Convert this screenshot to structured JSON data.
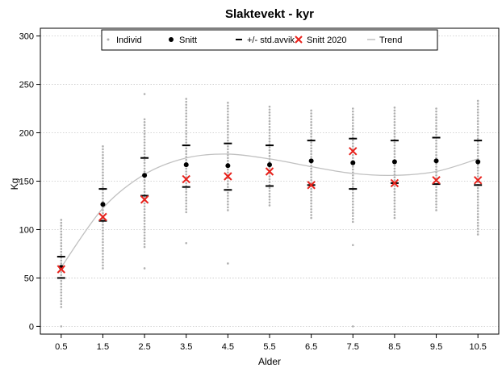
{
  "chart_data": {
    "type": "scatter",
    "title": "Slaktevekt - kyr",
    "xlabel": "Alder",
    "ylabel": "Kg",
    "x_ticks": [
      "0.5",
      "1.5",
      "2.5",
      "3.5",
      "4.5",
      "5.5",
      "6.5",
      "7.5",
      "8.5",
      "9.5",
      "10.5"
    ],
    "y_ticks": [
      "0",
      "50",
      "100",
      "150",
      "200",
      "250",
      "300"
    ],
    "xlim": [
      0,
      11
    ],
    "ylim": [
      -8,
      308
    ],
    "grid": "horizontal dotted",
    "legend_placement": "top",
    "legend": [
      {
        "label": "Individ",
        "marker": "small-dot",
        "color": "#b0b0b0"
      },
      {
        "label": "Snitt",
        "marker": "dot",
        "color": "#000000"
      },
      {
        "label": "+/- std.avvik",
        "marker": "dash",
        "color": "#000000"
      },
      {
        "label": "Snitt 2020",
        "marker": "x",
        "color": "#e8221c"
      },
      {
        "label": "Trend",
        "marker": "line",
        "color": "#c0c0c0"
      }
    ],
    "series": [
      {
        "name": "Individ",
        "ranges": [
          {
            "x": 0.5,
            "min": 20,
            "max": 110,
            "outliers": [
              0
            ]
          },
          {
            "x": 1.5,
            "min": 60,
            "max": 188,
            "outliers": []
          },
          {
            "x": 2.5,
            "min": 82,
            "max": 215,
            "outliers": [
              60,
              240
            ]
          },
          {
            "x": 3.5,
            "min": 118,
            "max": 235,
            "outliers": [
              86
            ]
          },
          {
            "x": 4.5,
            "min": 120,
            "max": 233,
            "outliers": [
              65
            ]
          },
          {
            "x": 5.5,
            "min": 125,
            "max": 228,
            "outliers": []
          },
          {
            "x": 6.5,
            "min": 112,
            "max": 225,
            "outliers": []
          },
          {
            "x": 7.5,
            "min": 108,
            "max": 226,
            "outliers": [
              84,
              0
            ]
          },
          {
            "x": 8.5,
            "min": 112,
            "max": 226,
            "outliers": []
          },
          {
            "x": 9.5,
            "min": 120,
            "max": 226,
            "outliers": []
          },
          {
            "x": 10.5,
            "min": 95,
            "max": 235,
            "outliers": []
          }
        ]
      },
      {
        "name": "Snitt",
        "x": [
          0.5,
          1.5,
          2.5,
          3.5,
          4.5,
          5.5,
          6.5,
          7.5,
          8.5,
          9.5,
          10.5
        ],
        "values": [
          61,
          126,
          156,
          167,
          166,
          167,
          171,
          169,
          170,
          171,
          170
        ]
      },
      {
        "name": "+/- std.avvik upper",
        "x": [
          0.5,
          1.5,
          2.5,
          3.5,
          4.5,
          5.5,
          6.5,
          7.5,
          8.5,
          9.5,
          10.5
        ],
        "values": [
          72,
          142,
          174,
          187,
          189,
          187,
          192,
          194,
          192,
          195,
          192
        ]
      },
      {
        "name": "+/- std.avvik lower",
        "x": [
          0.5,
          1.5,
          2.5,
          3.5,
          4.5,
          5.5,
          6.5,
          7.5,
          8.5,
          9.5,
          10.5
        ],
        "values": [
          50,
          109,
          135,
          144,
          141,
          145,
          146,
          142,
          148,
          147,
          146
        ]
      },
      {
        "name": "Snitt 2020",
        "x": [
          0.5,
          1.5,
          2.5,
          3.5,
          4.5,
          5.5,
          6.5,
          7.5,
          8.5,
          9.5,
          10.5
        ],
        "values": [
          59,
          113,
          131,
          152,
          155,
          160,
          146,
          181,
          148,
          151,
          151
        ]
      },
      {
        "name": "Trend",
        "x": [
          0.5,
          1.5,
          2.5,
          3.5,
          4.5,
          5.5,
          6.5,
          7.5,
          8.5,
          9.5,
          10.5
        ],
        "values": [
          61,
          122,
          157,
          174,
          178,
          173,
          165,
          158,
          156,
          160,
          173
        ]
      }
    ]
  }
}
